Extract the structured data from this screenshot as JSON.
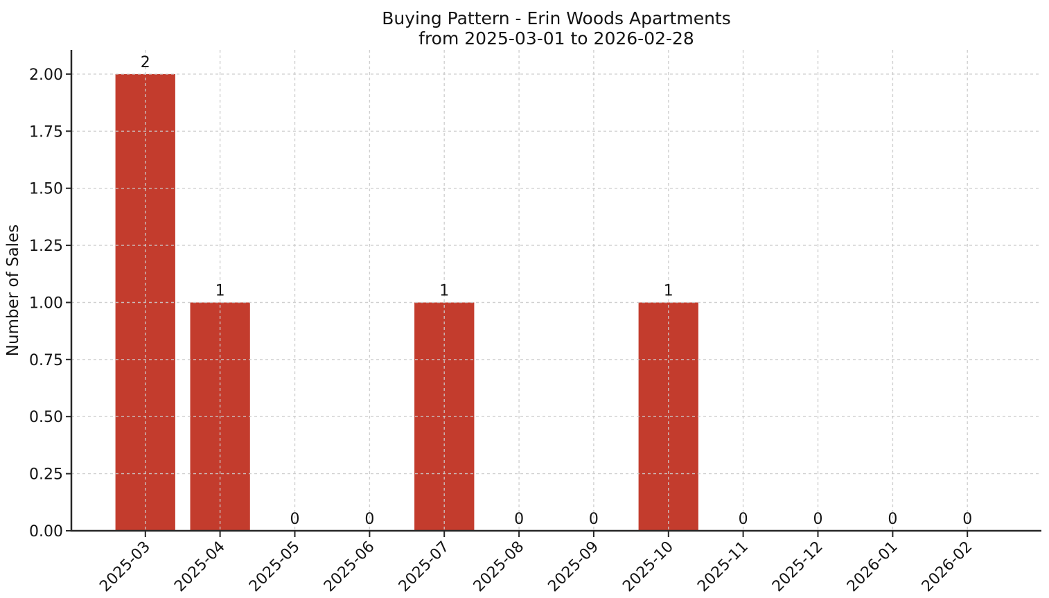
{
  "chart_data": {
    "type": "bar",
    "title": "Buying Pattern - Erin Woods Apartments",
    "subtitle": "from 2025-03-01 to 2026-02-28",
    "categories": [
      "2025-03",
      "2025-04",
      "2025-05",
      "2025-06",
      "2025-07",
      "2025-08",
      "2025-09",
      "2025-10",
      "2025-11",
      "2025-12",
      "2026-01",
      "2026-02"
    ],
    "values": [
      2,
      1,
      0,
      0,
      1,
      0,
      0,
      1,
      0,
      0,
      0,
      0
    ],
    "bar_value_labels": [
      "2",
      "1",
      "0",
      "0",
      "1",
      "0",
      "0",
      "1",
      "0",
      "0",
      "0",
      "0"
    ],
    "xlabel": "",
    "ylabel": "Number of Sales",
    "ylim": [
      0,
      2.106
    ],
    "ytick_labels": [
      "0.00",
      "0.25",
      "0.50",
      "0.75",
      "1.00",
      "1.25",
      "1.50",
      "1.75",
      "2.00"
    ],
    "ytick_values": [
      0,
      0.25,
      0.5,
      0.75,
      1.0,
      1.25,
      1.5,
      1.75,
      2.0
    ],
    "x_tick_rotation": 45,
    "grid": {
      "visible": true,
      "style": "dashed",
      "color": "#cccccc",
      "above_bars": true
    },
    "legend": {
      "visible": false
    },
    "colors": {
      "bar": "#c33c2d",
      "axis": "#262626",
      "tick_text": "#141414",
      "background": "#ffffff"
    }
  }
}
